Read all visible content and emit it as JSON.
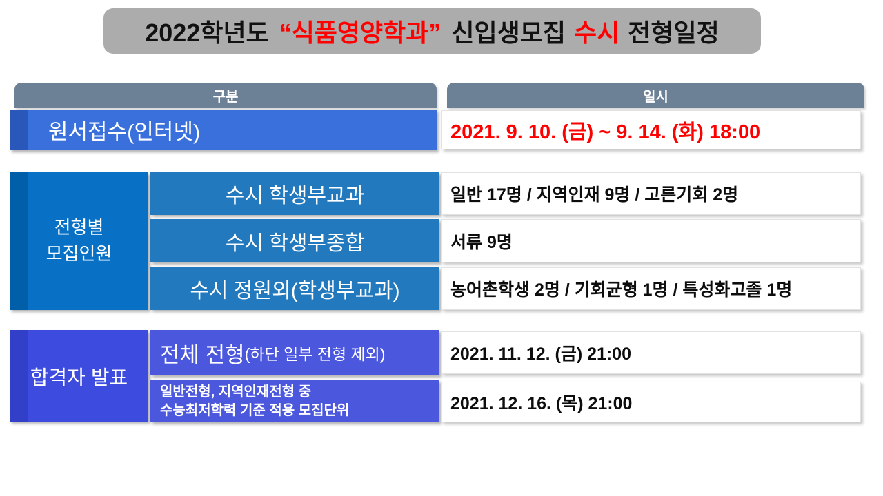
{
  "colors": {
    "title_bg": "#acacac",
    "header_bg": "#6c8096",
    "application_row_bg": "#3a70dc",
    "quota_section_bg": "#0971c5",
    "quota_row_bg": "#2279bd",
    "announcement_section_bg": "#3d4bdf",
    "announcement_row_bg": "#4b57dd",
    "highlight_red": "#ff0000"
  },
  "title": {
    "p1": "2022학년도",
    "p2": "“식품영양학과”",
    "p3": "신입생모집",
    "p4": "수시",
    "p5": "전형일정"
  },
  "headers": {
    "category": "구분",
    "datetime": "일시"
  },
  "application": {
    "label": "원서접수(인터넷)",
    "value": "2021. 9. 10. (금) ~ 9. 14. (화) 18:00"
  },
  "quota": {
    "group_label_line1": "전형별",
    "group_label_line2": "모집인원",
    "rows": [
      {
        "label": "수시 학생부교과",
        "value": "일반 17명 / 지역인재 9명 / 고른기회 2명"
      },
      {
        "label": "수시 학생부종합",
        "value": "서류 9명"
      },
      {
        "label": "수시 정원외(학생부교과)",
        "value": "농어촌학생 2명 / 기회균형 1명 / 특성화고졸 1명"
      }
    ]
  },
  "announcement": {
    "group_label": "합격자 발표",
    "rows": [
      {
        "label_main": "전체 전형",
        "label_sub": "(하단 일부 전형 제외)",
        "value": "2021. 11. 12. (금) 21:00"
      },
      {
        "label_line1": "일반전형, 지역인재전형 중",
        "label_line2": "수능최저학력 기준 적용 모집단위",
        "value": "2021. 12. 16. (목) 21:00"
      }
    ]
  }
}
